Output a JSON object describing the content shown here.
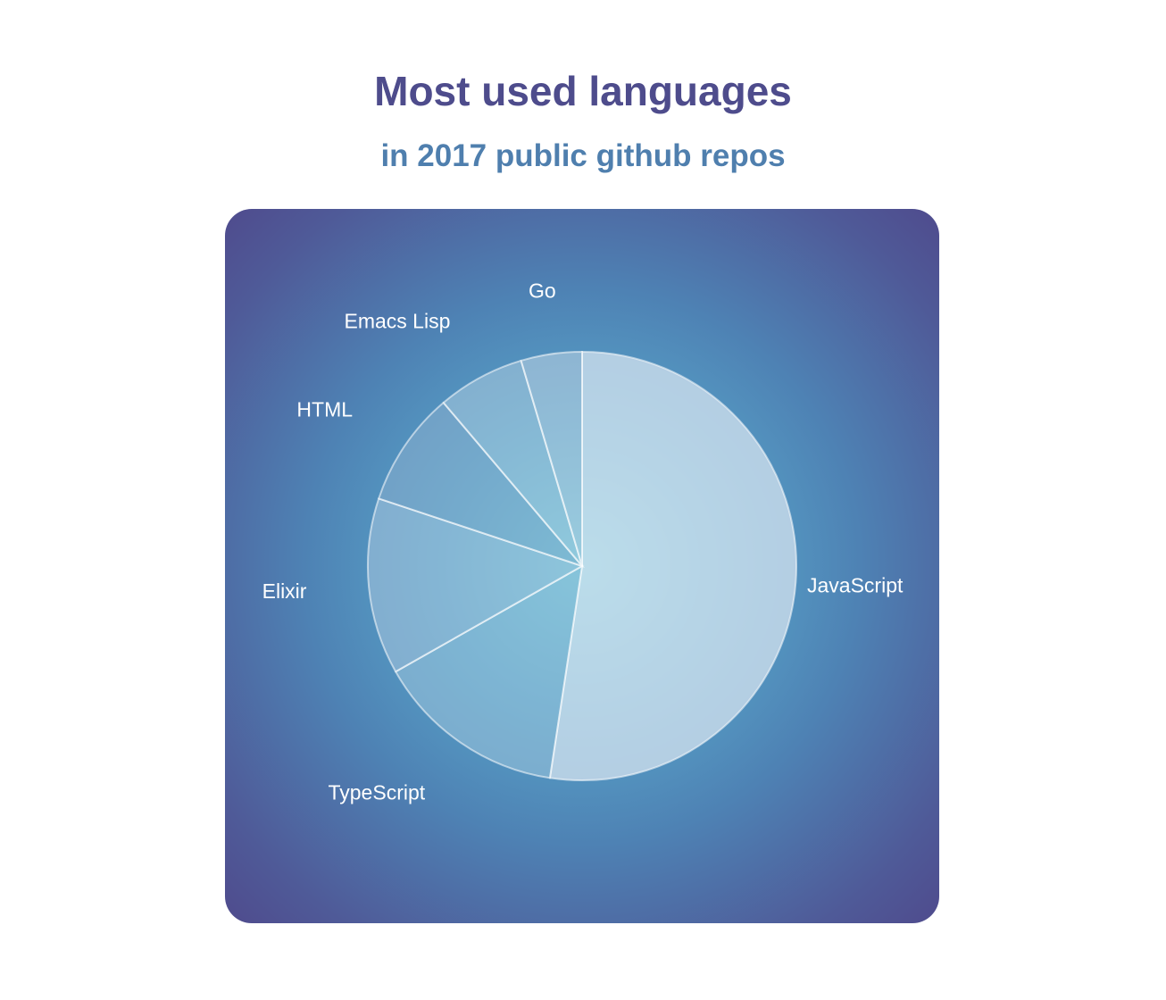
{
  "header": {
    "title": "Most used languages",
    "subtitle": "in 2017 public github repos"
  },
  "chart_data": {
    "type": "pie",
    "title": "Most used languages",
    "subtitle": "in 2017 public github repos",
    "start_angle_deg": 0,
    "direction": "clockwise",
    "slices": [
      {
        "label": "JavaScript",
        "value": 52.4,
        "color": "#d9e6f1",
        "opacity": 0.72
      },
      {
        "label": "TypeScript",
        "value": 14.4,
        "color": "#9cc4dc",
        "opacity": 0.55
      },
      {
        "label": "Elixir",
        "value": 13.3,
        "color": "#a9c6de",
        "opacity": 0.55
      },
      {
        "label": "HTML",
        "value": 8.7,
        "color": "#8fb2cf",
        "opacity": 0.5
      },
      {
        "label": "Emacs Lisp",
        "value": 6.6,
        "color": "#b3cfe2",
        "opacity": 0.5
      },
      {
        "label": "Go",
        "value": 4.6,
        "color": "#bfd3e4",
        "opacity": 0.55
      }
    ],
    "labels_outside": true,
    "legend": "none"
  },
  "colors": {
    "title": "#4e4c8c",
    "subtitle": "#4f7fae",
    "card_center": "#6cc4d8",
    "card_edge": "#4f4b8d",
    "label": "#ffffff"
  }
}
